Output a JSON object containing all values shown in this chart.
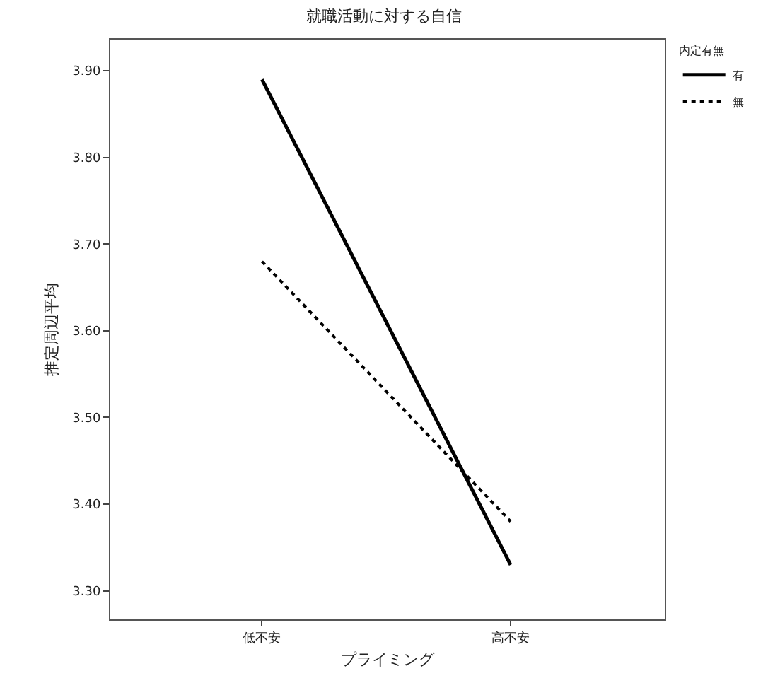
{
  "chart_data": {
    "type": "line",
    "title": "就職活動に対する自信",
    "xlabel": "プライミング",
    "ylabel": "推定周辺平均",
    "legend_title": "内定有無",
    "categories": [
      "低不安",
      "高不安"
    ],
    "series": [
      {
        "name": "有",
        "color": "#000000",
        "values": [
          3.89,
          3.33
        ],
        "line_style": "solid"
      },
      {
        "name": "無",
        "color": "#000000",
        "values": [
          3.68,
          3.38
        ],
        "line_style": "dotted"
      }
    ],
    "ylim": [
      3.267,
      3.936
    ],
    "yticks": [
      {
        "value": 3.3,
        "label": "3.30"
      },
      {
        "value": 3.4,
        "label": "3.40"
      },
      {
        "value": 3.5,
        "label": "3.50"
      },
      {
        "value": 3.6,
        "label": "3.60"
      },
      {
        "value": 3.7,
        "label": "3.70"
      },
      {
        "value": 3.8,
        "label": "3.80"
      },
      {
        "value": 3.9,
        "label": "3.90"
      }
    ],
    "legend": "top right",
    "marker": "none"
  }
}
